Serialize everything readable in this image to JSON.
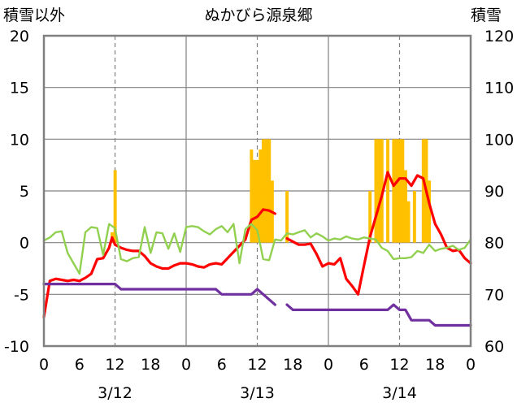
{
  "chart_data": {
    "type": "line",
    "title": "ぬかびら源泉郷",
    "left_axis_title": "積雪以外",
    "right_axis_title": "積雪",
    "x_range": [
      0,
      72
    ],
    "ylim_left": [
      -10,
      20
    ],
    "ylim_right": [
      60,
      120
    ],
    "yticks_left": [
      20,
      15,
      10,
      5,
      0,
      -5,
      -10
    ],
    "yticks_left_labels": [
      "20",
      "15",
      "10",
      "5",
      "0",
      "-5",
      "-10"
    ],
    "yticks_right": [
      120,
      110,
      100,
      90,
      80,
      70,
      60
    ],
    "yticks_right_labels": [
      "120",
      "110",
      "100",
      "90",
      "80",
      "70",
      "60"
    ],
    "xticks": [
      0,
      6,
      12,
      18,
      24,
      30,
      36,
      42,
      48,
      54,
      60,
      66,
      72
    ],
    "xtick_labels": [
      "0",
      "6",
      "12",
      "18",
      "0",
      "6",
      "12",
      "18",
      "0",
      "6",
      "12",
      "18",
      "0"
    ],
    "day_labels": [
      {
        "x": 12,
        "text": "3/12"
      },
      {
        "x": 36,
        "text": "3/13"
      },
      {
        "x": 60,
        "text": "3/14"
      }
    ],
    "day_boundaries": [
      24,
      48
    ],
    "dashed_gridlines_x": [
      12,
      36,
      60
    ],
    "grid_y": true,
    "colors": {
      "bars": "#FFC000",
      "red": "#FF0000",
      "green": "#92D050",
      "purple": "#7030A0",
      "frame": "#808080",
      "grid": "#808080"
    },
    "bars": [
      {
        "x": 11.5,
        "y": 1
      },
      {
        "x": 12,
        "y": 7
      },
      {
        "x": 35,
        "y": 9
      },
      {
        "x": 35.5,
        "y": 8
      },
      {
        "x": 36,
        "y": 8
      },
      {
        "x": 36.5,
        "y": 9
      },
      {
        "x": 37,
        "y": 10
      },
      {
        "x": 37.5,
        "y": 10
      },
      {
        "x": 38,
        "y": 10
      },
      {
        "x": 38.5,
        "y": 6
      },
      {
        "x": 41,
        "y": 5
      },
      {
        "x": 55,
        "y": 5
      },
      {
        "x": 56,
        "y": 10
      },
      {
        "x": 56.5,
        "y": 10
      },
      {
        "x": 57,
        "y": 10
      },
      {
        "x": 58,
        "y": 10
      },
      {
        "x": 59,
        "y": 10
      },
      {
        "x": 59.5,
        "y": 10
      },
      {
        "x": 60,
        "y": 10
      },
      {
        "x": 60.5,
        "y": 10
      },
      {
        "x": 61,
        "y": 7
      },
      {
        "x": 61.5,
        "y": 4
      },
      {
        "x": 62.5,
        "y": 5
      },
      {
        "x": 64,
        "y": 10
      },
      {
        "x": 64.5,
        "y": 10
      },
      {
        "x": 65,
        "y": 6
      }
    ],
    "series": [
      {
        "values_xy": [
          [
            0,
            -7.2
          ],
          [
            1,
            -3.7
          ],
          [
            2,
            -3.5
          ],
          [
            3,
            -3.6
          ],
          [
            4,
            -3.7
          ],
          [
            5,
            -3.6
          ],
          [
            6,
            -3.7
          ],
          [
            7,
            -3.4
          ],
          [
            8,
            -3.0
          ],
          [
            9,
            -1.6
          ],
          [
            10,
            -1.5
          ],
          [
            11,
            -0.5
          ],
          [
            11.5,
            0.5
          ],
          [
            12,
            -0.2
          ],
          [
            13,
            -0.5
          ],
          [
            14,
            -0.7
          ],
          [
            15,
            -0.8
          ],
          [
            16,
            -0.8
          ],
          [
            17,
            -1.3
          ],
          [
            18,
            -2.0
          ],
          [
            19,
            -2.3
          ],
          [
            20,
            -2.5
          ],
          [
            21,
            -2.5
          ],
          [
            22,
            -2.2
          ],
          [
            23,
            -2.0
          ],
          [
            24,
            -2.0
          ],
          [
            25,
            -2.1
          ],
          [
            26,
            -2.3
          ],
          [
            27,
            -2.4
          ],
          [
            28,
            -2.1
          ],
          [
            29,
            -2.0
          ],
          [
            30,
            -2.1
          ],
          [
            31,
            -1.5
          ],
          [
            32,
            -0.9
          ],
          [
            33,
            -0.3
          ],
          [
            34,
            0.3
          ],
          [
            34.5,
            1.3
          ],
          [
            35,
            2.2
          ],
          [
            36,
            2.5
          ],
          [
            37,
            3.2
          ],
          [
            38,
            3.1
          ],
          [
            39,
            2.8
          ]
        ]
      },
      {
        "values_xy": [
          [
            41,
            0.4
          ],
          [
            42,
            0.1
          ],
          [
            43,
            -0.2
          ],
          [
            44,
            -0.2
          ],
          [
            45,
            -0.1
          ],
          [
            46,
            -1.1
          ],
          [
            47,
            -2.3
          ],
          [
            48,
            -2.0
          ],
          [
            49,
            -2.1
          ],
          [
            50,
            -1.5
          ],
          [
            51,
            -3.5
          ],
          [
            52,
            -4.2
          ],
          [
            53,
            -5.0
          ],
          [
            54,
            -2.2
          ],
          [
            55,
            0.5
          ],
          [
            56,
            2.5
          ],
          [
            57,
            4.5
          ],
          [
            58,
            6.8
          ],
          [
            59,
            5.5
          ],
          [
            60,
            6.2
          ],
          [
            61,
            6.2
          ],
          [
            62,
            5.5
          ],
          [
            63,
            6.5
          ],
          [
            64,
            6.2
          ],
          [
            65,
            3.8
          ],
          [
            66,
            1.8
          ],
          [
            67,
            0.8
          ],
          [
            68,
            -0.5
          ],
          [
            69,
            -0.8
          ],
          [
            70,
            -0.7
          ],
          [
            71,
            -1.5
          ],
          [
            72,
            -2.0
          ]
        ]
      },
      {
        "values_xy": [
          [
            0,
            0.2
          ],
          [
            1,
            0.5
          ],
          [
            2,
            1.0
          ],
          [
            3,
            1.1
          ],
          [
            4,
            -1.0
          ],
          [
            5,
            -2.0
          ],
          [
            6,
            -3.0
          ],
          [
            7,
            1.0
          ],
          [
            8,
            1.5
          ],
          [
            9,
            1.4
          ],
          [
            10,
            -1.2
          ],
          [
            11,
            1.8
          ],
          [
            12,
            1.4
          ],
          [
            13,
            -1.6
          ],
          [
            14,
            -1.8
          ],
          [
            15,
            -1.5
          ],
          [
            16,
            -1.4
          ],
          [
            17,
            1.5
          ],
          [
            18,
            -1.0
          ],
          [
            19,
            1.0
          ],
          [
            20,
            0.9
          ],
          [
            21,
            -0.6
          ],
          [
            22,
            0.9
          ],
          [
            23,
            -0.9
          ],
          [
            24,
            1.5
          ],
          [
            25,
            1.6
          ],
          [
            26,
            1.5
          ],
          [
            27,
            1.1
          ],
          [
            28,
            0.8
          ],
          [
            29,
            1.3
          ],
          [
            30,
            1.6
          ],
          [
            31,
            1.0
          ],
          [
            32,
            1.8
          ],
          [
            33,
            -2.0
          ],
          [
            34,
            1.3
          ],
          [
            35,
            1.8
          ],
          [
            36,
            1.2
          ],
          [
            37,
            -1.6
          ],
          [
            38,
            -1.7
          ],
          [
            39,
            0.3
          ],
          [
            40,
            0.2
          ],
          [
            41,
            0.9
          ],
          [
            42,
            0.8
          ],
          [
            43,
            1.0
          ],
          [
            44,
            1.2
          ],
          [
            45,
            0.5
          ],
          [
            46,
            0.9
          ],
          [
            47,
            0.6
          ],
          [
            48,
            0.2
          ],
          [
            49,
            0.4
          ],
          [
            50,
            0.3
          ],
          [
            51,
            0.6
          ],
          [
            52,
            0.4
          ],
          [
            53,
            0.3
          ],
          [
            54,
            0.5
          ],
          [
            55,
            0.4
          ],
          [
            56,
            0.3
          ],
          [
            57,
            -0.5
          ],
          [
            58,
            -0.8
          ],
          [
            59,
            -1.6
          ],
          [
            60,
            -1.5
          ],
          [
            61,
            -1.5
          ],
          [
            62,
            -1.4
          ],
          [
            63,
            -0.8
          ],
          [
            64,
            -1.0
          ],
          [
            65,
            -0.2
          ],
          [
            66,
            -0.8
          ],
          [
            67,
            -0.6
          ],
          [
            68,
            -0.5
          ],
          [
            69,
            -0.3
          ],
          [
            70,
            -0.7
          ],
          [
            71,
            -0.5
          ],
          [
            72,
            0.3
          ]
        ]
      },
      {
        "values_xy": [
          [
            0,
            -4.0
          ],
          [
            12,
            -4.0
          ],
          [
            13,
            -4.5
          ],
          [
            24,
            -4.5
          ],
          [
            29,
            -4.5
          ],
          [
            30,
            -5.0
          ],
          [
            35,
            -5.0
          ],
          [
            36,
            -4.5
          ],
          [
            37,
            -5.0
          ],
          [
            38,
            -5.5
          ],
          [
            39,
            -6.0
          ]
        ]
      },
      {
        "values_xy": [
          [
            41,
            -6.0
          ],
          [
            42,
            -6.5
          ],
          [
            43,
            -6.5
          ],
          [
            58,
            -6.5
          ],
          [
            59,
            -6.0
          ],
          [
            60,
            -6.5
          ],
          [
            61,
            -6.5
          ],
          [
            62,
            -7.5
          ],
          [
            63,
            -7.5
          ],
          [
            65,
            -7.5
          ],
          [
            66,
            -8.0
          ],
          [
            72,
            -8.0
          ]
        ]
      }
    ],
    "series_colors": [
      "#FF0000",
      "#FF0000",
      "#92D050",
      "#7030A0",
      "#7030A0"
    ],
    "series_widths": [
      3.2,
      3.2,
      2.4,
      3.2,
      3.2
    ]
  }
}
